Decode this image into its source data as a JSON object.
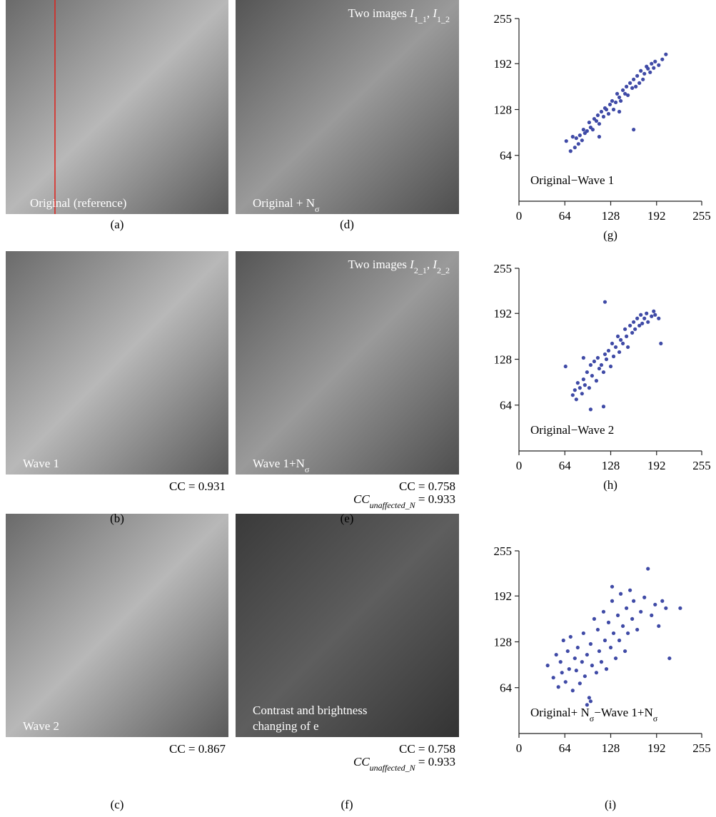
{
  "panels": [
    {
      "label": "(a)",
      "overlay": [
        "Original (reference)"
      ]
    },
    {
      "label": "(b)",
      "overlay": [
        "Wave 1"
      ],
      "cc": [
        "CC = 0.931"
      ]
    },
    {
      "label": "(c)",
      "overlay": [
        "Wave 2"
      ],
      "cc": [
        "CC = 0.867"
      ]
    },
    {
      "label": "(d)",
      "overlay_top": [
        [
          {
            "text": "Two images "
          },
          {
            "text": "I",
            "italic": true
          },
          {
            "text": "1_1",
            "sub": true
          },
          {
            "text": ", "
          },
          {
            "text": "I",
            "italic": true
          },
          {
            "text": "1_2",
            "sub": true
          }
        ]
      ],
      "overlay": [
        [
          {
            "text": "Original + N"
          },
          {
            "text": "σ",
            "sub": true
          }
        ]
      ]
    },
    {
      "label": "(e)",
      "overlay_top": [
        [
          {
            "text": "Two images "
          },
          {
            "text": "I",
            "italic": true
          },
          {
            "text": "2_1",
            "sub": true
          },
          {
            "text": ", "
          },
          {
            "text": "I",
            "italic": true
          },
          {
            "text": "2_2",
            "sub": true
          }
        ]
      ],
      "overlay": [
        [
          {
            "text": "Wave 1+N"
          },
          {
            "text": "σ",
            "sub": true
          }
        ]
      ],
      "cc": [
        "CC = 0.758",
        [
          {
            "text": "CC",
            "italic": true
          },
          {
            "text": "unaffected_N",
            "sub": true,
            "italic": true
          },
          {
            "text": " = 0.933"
          }
        ]
      ]
    },
    {
      "label": "(f)",
      "overlay": [
        "Contrast and brightness",
        "changing of e"
      ],
      "cc": [
        "CC = 0.758",
        [
          {
            "text": "CC",
            "italic": true
          },
          {
            "text": "unaffected_N",
            "sub": true,
            "italic": true
          },
          {
            "text": " = 0.933"
          }
        ]
      ]
    }
  ],
  "chart_data": [
    {
      "type": "scatter",
      "label": "(g)",
      "annotation": "Original−Wave 1",
      "color": "#3f4aa6",
      "xlim": [
        0,
        255
      ],
      "ylim": [
        0,
        255
      ],
      "xticks": [
        0,
        64,
        128,
        192,
        255
      ],
      "yticks": [
        64,
        128,
        192,
        255
      ],
      "x": [
        66,
        72,
        75,
        78,
        80,
        83,
        85,
        88,
        90,
        92,
        95,
        98,
        100,
        103,
        105,
        108,
        110,
        112,
        115,
        118,
        120,
        122,
        125,
        127,
        130,
        132,
        135,
        137,
        140,
        142,
        145,
        148,
        150,
        152,
        155,
        158,
        160,
        163,
        165,
        168,
        170,
        173,
        175,
        178,
        180,
        183,
        185,
        188,
        190,
        195,
        200,
        205,
        112,
        140,
        160
      ],
      "y": [
        84,
        70,
        90,
        75,
        88,
        80,
        92,
        85,
        100,
        95,
        98,
        110,
        103,
        100,
        115,
        112,
        120,
        108,
        125,
        118,
        130,
        128,
        122,
        135,
        140,
        128,
        138,
        150,
        145,
        140,
        155,
        150,
        160,
        148,
        165,
        158,
        170,
        160,
        175,
        165,
        182,
        170,
        178,
        188,
        185,
        180,
        192,
        186,
        195,
        190,
        198,
        205,
        90,
        125,
        100
      ]
    },
    {
      "type": "scatter",
      "label": "(h)",
      "annotation": "Original−Wave 2",
      "color": "#3f4aa6",
      "xlim": [
        0,
        255
      ],
      "ylim": [
        0,
        255
      ],
      "xticks": [
        0,
        64,
        128,
        192,
        255
      ],
      "yticks": [
        64,
        128,
        192,
        255
      ],
      "x": [
        65,
        75,
        78,
        80,
        82,
        85,
        88,
        90,
        92,
        95,
        98,
        100,
        102,
        105,
        108,
        110,
        112,
        115,
        118,
        120,
        122,
        125,
        128,
        130,
        132,
        135,
        138,
        140,
        142,
        145,
        148,
        150,
        152,
        155,
        158,
        160,
        162,
        165,
        168,
        170,
        172,
        175,
        178,
        180,
        185,
        188,
        190,
        195,
        198,
        120,
        118,
        100,
        90
      ],
      "y": [
        118,
        78,
        85,
        72,
        95,
        88,
        80,
        100,
        92,
        110,
        88,
        120,
        105,
        125,
        98,
        130,
        115,
        120,
        110,
        135,
        128,
        140,
        118,
        150,
        132,
        145,
        160,
        138,
        155,
        150,
        170,
        160,
        145,
        175,
        165,
        180,
        170,
        185,
        175,
        190,
        178,
        185,
        192,
        180,
        188,
        195,
        190,
        185,
        150,
        208,
        62,
        58,
        130
      ]
    },
    {
      "type": "scatter",
      "label": "(i)",
      "annotation": [
        {
          "text": "Original+ N"
        },
        {
          "text": "σ",
          "sub": true
        },
        {
          "text": "−Wave 1+N"
        },
        {
          "text": "σ",
          "sub": true
        }
      ],
      "color": "#3f4aa6",
      "xlim": [
        0,
        255
      ],
      "ylim": [
        0,
        255
      ],
      "xticks": [
        0,
        64,
        128,
        192,
        255
      ],
      "yticks": [
        64,
        128,
        192,
        255
      ],
      "x": [
        40,
        48,
        52,
        55,
        58,
        60,
        62,
        65,
        68,
        70,
        72,
        75,
        78,
        80,
        82,
        85,
        88,
        90,
        92,
        95,
        98,
        100,
        102,
        105,
        108,
        110,
        112,
        115,
        118,
        120,
        122,
        125,
        128,
        130,
        132,
        135,
        138,
        140,
        142,
        145,
        148,
        150,
        152,
        155,
        158,
        160,
        165,
        170,
        175,
        180,
        185,
        190,
        195,
        200,
        205,
        210,
        225,
        100,
        95,
        130
      ],
      "y": [
        95,
        78,
        110,
        65,
        100,
        85,
        130,
        72,
        115,
        90,
        135,
        60,
        105,
        88,
        120,
        70,
        100,
        140,
        80,
        110,
        50,
        125,
        95,
        160,
        85,
        145,
        115,
        100,
        170,
        130,
        90,
        155,
        120,
        185,
        140,
        105,
        165,
        130,
        195,
        150,
        115,
        175,
        140,
        200,
        160,
        185,
        145,
        170,
        190,
        230,
        165,
        180,
        150,
        185,
        175,
        105,
        175,
        45,
        40,
        205
      ]
    }
  ]
}
